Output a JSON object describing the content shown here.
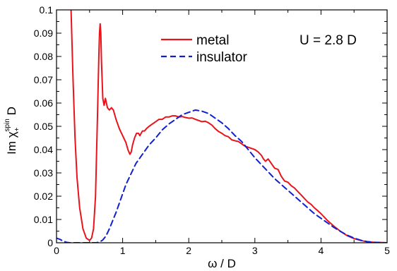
{
  "chart_data": {
    "type": "line",
    "xlabel": "ω / D",
    "ylabel": {
      "main": "Im χ",
      "subscript": "+",
      "superscript": "spin",
      "suffix": " D"
    },
    "xlim": [
      0,
      5
    ],
    "ylim": [
      0,
      0.1
    ],
    "xticks": [
      0,
      1,
      2,
      3,
      4,
      5
    ],
    "yticks": [
      0,
      0.01,
      0.02,
      0.03,
      0.04,
      0.05,
      0.06,
      0.07,
      0.08,
      0.09,
      0.1
    ],
    "xtick_labels": [
      "0",
      "1",
      "2",
      "3",
      "4",
      "5"
    ],
    "ytick_labels": [
      "0",
      "0.01",
      "0.02",
      "0.03",
      "0.04",
      "0.05",
      "0.06",
      "0.07",
      "0.08",
      "0.09",
      "0.1"
    ],
    "grid": false,
    "legend_position": "top-center",
    "annotation": "U = 2.8 D",
    "series": [
      {
        "name": "metal",
        "color": "#e8141b",
        "style": "solid",
        "x": [
          0.22,
          0.23,
          0.25,
          0.28,
          0.31,
          0.35,
          0.4,
          0.45,
          0.5,
          0.53,
          0.56,
          0.59,
          0.62,
          0.64,
          0.65,
          0.66,
          0.67,
          0.68,
          0.7,
          0.72,
          0.74,
          0.77,
          0.8,
          0.83,
          0.86,
          0.9,
          0.95,
          1.0,
          1.05,
          1.08,
          1.11,
          1.13,
          1.15,
          1.18,
          1.21,
          1.24,
          1.26,
          1.28,
          1.3,
          1.33,
          1.36,
          1.4,
          1.45,
          1.5,
          1.55,
          1.6,
          1.65,
          1.7,
          1.75,
          1.8,
          1.85,
          1.9,
          1.95,
          2.0,
          2.05,
          2.1,
          2.15,
          2.2,
          2.25,
          2.3,
          2.35,
          2.4,
          2.45,
          2.5,
          2.55,
          2.6,
          2.65,
          2.7,
          2.75,
          2.8,
          2.85,
          2.9,
          2.95,
          3.0,
          3.05,
          3.1,
          3.13,
          3.16,
          3.2,
          3.25,
          3.3,
          3.35,
          3.4,
          3.45,
          3.5,
          3.55,
          3.6,
          3.65,
          3.7,
          3.75,
          3.8,
          3.85,
          3.9,
          3.95,
          4.0,
          4.1,
          4.2,
          4.3,
          4.4,
          4.5,
          4.6,
          4.7,
          4.8,
          4.9,
          5.0
        ],
        "values": [
          0.1,
          0.09,
          0.07,
          0.045,
          0.028,
          0.015,
          0.006,
          0.002,
          0.001,
          0.002,
          0.006,
          0.02,
          0.055,
          0.08,
          0.09,
          0.094,
          0.09,
          0.078,
          0.062,
          0.059,
          0.062,
          0.058,
          0.057,
          0.058,
          0.057,
          0.053,
          0.049,
          0.046,
          0.043,
          0.04,
          0.038,
          0.039,
          0.042,
          0.045,
          0.047,
          0.047,
          0.046,
          0.047,
          0.048,
          0.048,
          0.049,
          0.05,
          0.051,
          0.052,
          0.053,
          0.053,
          0.054,
          0.054,
          0.0545,
          0.0545,
          0.054,
          0.0542,
          0.0538,
          0.0535,
          0.0536,
          0.053,
          0.0525,
          0.052,
          0.0522,
          0.0515,
          0.0505,
          0.049,
          0.0478,
          0.047,
          0.046,
          0.0455,
          0.0442,
          0.0438,
          0.0435,
          0.0425,
          0.0415,
          0.041,
          0.0405,
          0.04,
          0.039,
          0.0375,
          0.036,
          0.035,
          0.036,
          0.034,
          0.032,
          0.0315,
          0.0285,
          0.0265,
          0.026,
          0.0245,
          0.0235,
          0.022,
          0.0205,
          0.019,
          0.0175,
          0.0165,
          0.015,
          0.0138,
          0.0125,
          0.0095,
          0.007,
          0.0048,
          0.003,
          0.0018,
          0.001,
          0.0004,
          0.0002,
          0.0001,
          0.0
        ]
      },
      {
        "name": "insulator",
        "color": "#1020d0",
        "style": "dashed",
        "x": [
          0.0,
          0.05,
          0.1,
          0.15,
          0.2,
          0.25,
          0.3,
          0.4,
          0.5,
          0.6,
          0.65,
          0.7,
          0.75,
          0.8,
          0.85,
          0.9,
          0.95,
          1.0,
          1.05,
          1.1,
          1.15,
          1.2,
          1.25,
          1.3,
          1.35,
          1.4,
          1.5,
          1.6,
          1.7,
          1.8,
          1.9,
          2.0,
          2.05,
          2.1,
          2.2,
          2.3,
          2.4,
          2.5,
          2.6,
          2.7,
          2.8,
          2.9,
          3.0,
          3.1,
          3.2,
          3.3,
          3.4,
          3.5,
          3.6,
          3.7,
          3.8,
          3.9,
          4.0,
          4.1,
          4.2,
          4.3,
          4.4,
          4.5,
          4.6,
          4.7,
          4.8,
          4.9,
          5.0
        ],
        "values": [
          0.002,
          0.0015,
          0.0007,
          0.0002,
          0.0,
          0.0,
          0.0,
          0.0,
          0.0,
          0.0,
          0.0003,
          0.0012,
          0.003,
          0.006,
          0.0095,
          0.013,
          0.017,
          0.021,
          0.025,
          0.028,
          0.031,
          0.034,
          0.036,
          0.038,
          0.04,
          0.042,
          0.045,
          0.0485,
          0.051,
          0.053,
          0.055,
          0.056,
          0.0565,
          0.057,
          0.0565,
          0.0555,
          0.0535,
          0.0515,
          0.049,
          0.046,
          0.0435,
          0.04,
          0.0365,
          0.0335,
          0.0305,
          0.0275,
          0.025,
          0.0225,
          0.02,
          0.0175,
          0.015,
          0.0125,
          0.0105,
          0.0085,
          0.0065,
          0.0048,
          0.0032,
          0.002,
          0.0011,
          0.0005,
          0.0002,
          0.0001,
          0.0
        ]
      }
    ]
  }
}
